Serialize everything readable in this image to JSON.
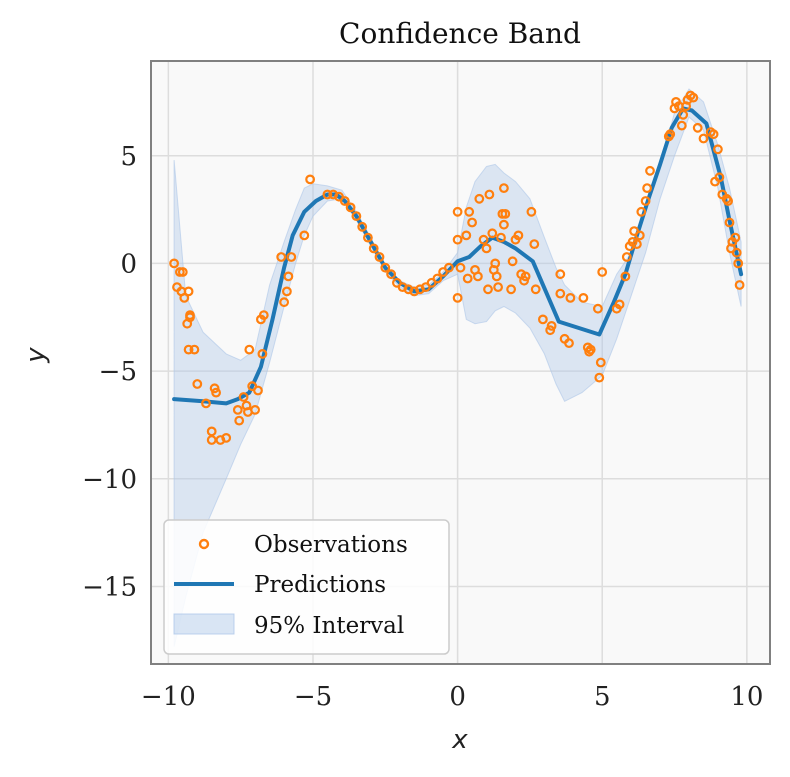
{
  "chart_data": {
    "type": "line",
    "title": "Confidence Band",
    "xlabel": "x",
    "ylabel": "y",
    "xlim": [
      -10.6,
      10.8
    ],
    "ylim": [
      -18.6,
      9.4
    ],
    "xticks": [
      -10,
      -5,
      0,
      5,
      10
    ],
    "yticks": [
      5,
      0,
      -5,
      -10,
      -15
    ],
    "xtick_labels": [
      "−10",
      "−5",
      "0",
      "5",
      "10"
    ],
    "ytick_labels": [
      "5",
      "0",
      "−5",
      "−10",
      "−15"
    ],
    "grid": true,
    "legend_position": "bottom-left",
    "colors": {
      "observations": "#ff7f0e",
      "predictions": "#1f77b4",
      "band": "#aec7e8",
      "background": "#f9f9f9",
      "grid": "#dddddd",
      "frame": "#808080"
    },
    "series": [
      {
        "name": "Observations",
        "kind": "scatter",
        "points": [
          [
            -9.8,
            0.0
          ],
          [
            -9.7,
            -1.1
          ],
          [
            -9.6,
            -0.4
          ],
          [
            -9.5,
            -0.4
          ],
          [
            -9.55,
            -1.3
          ],
          [
            -9.45,
            -1.6
          ],
          [
            -9.35,
            -2.8
          ],
          [
            -9.3,
            -1.3
          ],
          [
            -9.25,
            -2.4
          ],
          [
            -9.25,
            -2.5
          ],
          [
            -9.3,
            -4.0
          ],
          [
            -9.1,
            -4.0
          ],
          [
            -9.0,
            -5.6
          ],
          [
            -8.7,
            -6.5
          ],
          [
            -8.5,
            -7.8
          ],
          [
            -8.5,
            -8.2
          ],
          [
            -8.4,
            -5.8
          ],
          [
            -8.35,
            -6.0
          ],
          [
            -8.2,
            -8.2
          ],
          [
            -8.0,
            -8.1
          ],
          [
            -7.6,
            -6.8
          ],
          [
            -7.55,
            -7.3
          ],
          [
            -7.4,
            -6.2
          ],
          [
            -7.3,
            -6.6
          ],
          [
            -7.25,
            -6.9
          ],
          [
            -7.2,
            -4.0
          ],
          [
            -7.1,
            -5.7
          ],
          [
            -7.0,
            -6.8
          ],
          [
            -6.9,
            -5.9
          ],
          [
            -6.8,
            -2.6
          ],
          [
            -6.75,
            -4.2
          ],
          [
            -6.7,
            -2.4
          ],
          [
            -6.1,
            0.3
          ],
          [
            -6.0,
            -1.8
          ],
          [
            -5.9,
            -1.3
          ],
          [
            -5.85,
            -0.6
          ],
          [
            -5.75,
            0.3
          ],
          [
            -5.3,
            1.3
          ],
          [
            -5.1,
            3.9
          ],
          [
            -4.5,
            3.2
          ],
          [
            -4.3,
            3.2
          ],
          [
            -4.1,
            3.1
          ],
          [
            -3.9,
            2.9
          ],
          [
            -3.7,
            2.6
          ],
          [
            -3.5,
            2.2
          ],
          [
            -3.3,
            1.7
          ],
          [
            -3.1,
            1.2
          ],
          [
            -2.9,
            0.7
          ],
          [
            -2.7,
            0.3
          ],
          [
            -2.5,
            -0.2
          ],
          [
            -2.3,
            -0.5
          ],
          [
            -2.1,
            -0.9
          ],
          [
            -1.9,
            -1.1
          ],
          [
            -1.7,
            -1.2
          ],
          [
            -1.5,
            -1.3
          ],
          [
            -1.3,
            -1.2
          ],
          [
            -1.1,
            -1.1
          ],
          [
            -0.9,
            -0.9
          ],
          [
            -0.7,
            -0.7
          ],
          [
            -0.5,
            -0.4
          ],
          [
            -0.3,
            -0.2
          ],
          [
            0.0,
            2.4
          ],
          [
            0.0,
            1.1
          ],
          [
            0.0,
            -1.6
          ],
          [
            0.1,
            -0.2
          ],
          [
            0.3,
            1.3
          ],
          [
            0.35,
            -0.7
          ],
          [
            0.4,
            2.4
          ],
          [
            0.5,
            1.9
          ],
          [
            0.6,
            -0.3
          ],
          [
            0.7,
            -0.6
          ],
          [
            0.75,
            3.0
          ],
          [
            0.9,
            1.1
          ],
          [
            1.0,
            0.7
          ],
          [
            1.05,
            -1.2
          ],
          [
            1.1,
            3.2
          ],
          [
            1.2,
            1.4
          ],
          [
            1.25,
            -0.3
          ],
          [
            1.3,
            0.0
          ],
          [
            1.35,
            -0.6
          ],
          [
            1.4,
            -1.1
          ],
          [
            1.5,
            1.2
          ],
          [
            1.55,
            2.3
          ],
          [
            1.6,
            1.8
          ],
          [
            1.65,
            2.3
          ],
          [
            1.6,
            3.5
          ],
          [
            1.9,
            0.1
          ],
          [
            1.85,
            -1.2
          ],
          [
            2.0,
            1.1
          ],
          [
            2.1,
            1.3
          ],
          [
            2.2,
            -0.5
          ],
          [
            2.3,
            -0.8
          ],
          [
            2.35,
            -0.6
          ],
          [
            2.55,
            2.4
          ],
          [
            2.65,
            0.9
          ],
          [
            2.7,
            -1.2
          ],
          [
            2.95,
            -2.6
          ],
          [
            3.2,
            -3.1
          ],
          [
            3.25,
            -2.9
          ],
          [
            3.55,
            -0.5
          ],
          [
            3.55,
            -1.4
          ],
          [
            3.7,
            -3.5
          ],
          [
            3.85,
            -3.7
          ],
          [
            3.9,
            -1.6
          ],
          [
            4.35,
            -1.6
          ],
          [
            4.5,
            -3.9
          ],
          [
            4.55,
            -4.1
          ],
          [
            4.6,
            -4.0
          ],
          [
            4.85,
            -2.1
          ],
          [
            4.9,
            -5.3
          ],
          [
            4.95,
            -4.6
          ],
          [
            5.0,
            -0.4
          ],
          [
            5.5,
            -2.1
          ],
          [
            5.6,
            -1.9
          ],
          [
            5.8,
            -0.6
          ],
          [
            5.85,
            0.3
          ],
          [
            5.95,
            0.8
          ],
          [
            6.05,
            1.0
          ],
          [
            6.1,
            1.5
          ],
          [
            6.2,
            0.9
          ],
          [
            6.3,
            1.3
          ],
          [
            6.35,
            2.4
          ],
          [
            6.5,
            2.9
          ],
          [
            6.55,
            3.5
          ],
          [
            6.65,
            4.3
          ],
          [
            7.3,
            5.9
          ],
          [
            7.35,
            6.0
          ],
          [
            7.5,
            7.2
          ],
          [
            7.55,
            7.5
          ],
          [
            7.65,
            7.3
          ],
          [
            7.75,
            6.4
          ],
          [
            7.8,
            6.9
          ],
          [
            7.9,
            7.3
          ],
          [
            7.95,
            7.6
          ],
          [
            8.05,
            7.8
          ],
          [
            8.15,
            7.7
          ],
          [
            8.3,
            6.3
          ],
          [
            8.5,
            5.8
          ],
          [
            8.75,
            6.1
          ],
          [
            8.85,
            6.0
          ],
          [
            8.9,
            3.8
          ],
          [
            9.0,
            5.3
          ],
          [
            9.05,
            4.0
          ],
          [
            9.15,
            3.2
          ],
          [
            9.3,
            3.0
          ],
          [
            9.35,
            2.9
          ],
          [
            9.4,
            1.9
          ],
          [
            9.45,
            0.7
          ],
          [
            9.5,
            1.0
          ],
          [
            9.6,
            1.2
          ],
          [
            9.65,
            0.5
          ],
          [
            9.7,
            0.0
          ],
          [
            9.75,
            -1.0
          ]
        ]
      },
      {
        "name": "Predictions",
        "kind": "line",
        "x": [
          -9.8,
          -8.8,
          -8.0,
          -7.6,
          -7.2,
          -6.8,
          -6.4,
          -6.0,
          -5.7,
          -5.3,
          -4.9,
          -4.5,
          -4.2,
          -3.9,
          -3.5,
          -3.0,
          -2.5,
          -2.0,
          -1.5,
          -1.0,
          -0.5,
          0.0,
          0.4,
          0.8,
          1.2,
          1.6,
          2.0,
          2.6,
          3.5,
          4.9,
          5.4,
          5.8,
          6.2,
          6.6,
          7.0,
          7.4,
          7.8,
          8.1,
          8.6,
          9.1,
          9.4,
          9.8
        ],
        "y": [
          -6.3,
          -6.4,
          -6.5,
          -6.3,
          -6.0,
          -4.8,
          -2.6,
          -0.2,
          1.3,
          2.4,
          2.9,
          3.2,
          3.2,
          2.9,
          2.2,
          1.0,
          -0.2,
          -0.9,
          -1.3,
          -1.2,
          -0.6,
          0.1,
          0.3,
          0.8,
          1.2,
          1.0,
          0.7,
          0.1,
          -2.7,
          -3.3,
          -1.8,
          -0.5,
          1.3,
          3.0,
          4.6,
          6.3,
          7.2,
          7.1,
          6.5,
          4.0,
          2.0,
          -0.5
        ]
      },
      {
        "name": "95% Interval",
        "kind": "band",
        "x": [
          -9.8,
          -9.4,
          -8.8,
          -8.0,
          -7.5,
          -7.0,
          -6.5,
          -6.0,
          -5.6,
          -5.3,
          -5.0,
          -4.5,
          -4.0,
          -3.5,
          -3.0,
          -2.5,
          -2.0,
          -1.5,
          -1.0,
          -0.5,
          0.0,
          0.3,
          0.6,
          1.0,
          1.3,
          1.6,
          2.0,
          2.5,
          3.0,
          3.4,
          3.7,
          4.3,
          5.0,
          5.5,
          6.0,
          6.5,
          7.0,
          7.5,
          8.0,
          8.5,
          9.0,
          9.4,
          9.8
        ],
        "upper": [
          4.8,
          -1.5,
          -3.2,
          -4.2,
          -4.5,
          -4.0,
          -1.0,
          1.0,
          2.5,
          3.5,
          3.7,
          3.6,
          3.4,
          2.4,
          1.2,
          -0.2,
          -0.8,
          -1.1,
          -1.0,
          -0.4,
          0.5,
          2.6,
          3.8,
          4.5,
          4.6,
          4.2,
          3.8,
          3.0,
          1.2,
          -0.2,
          -1.0,
          -1.8,
          -2.0,
          -0.5,
          0.5,
          2.5,
          4.5,
          7.0,
          8.1,
          7.5,
          5.5,
          3.5,
          1.0
        ],
        "lower": [
          -17.8,
          -15.5,
          -12.5,
          -10.0,
          -8.4,
          -7.0,
          -4.6,
          -2.0,
          0.0,
          1.3,
          2.2,
          2.9,
          3.0,
          2.0,
          0.8,
          -0.4,
          -1.1,
          -1.5,
          -1.4,
          -0.8,
          -0.5,
          -2.6,
          -2.8,
          -2.7,
          -2.2,
          -2.0,
          -2.3,
          -3.0,
          -4.2,
          -5.6,
          -6.4,
          -6.0,
          -5.2,
          -3.5,
          -1.5,
          0.5,
          3.0,
          5.0,
          6.8,
          6.2,
          3.5,
          0.5,
          -2.0
        ]
      }
    ],
    "legend": [
      "Observations",
      "Predictions",
      "95% Interval"
    ]
  }
}
